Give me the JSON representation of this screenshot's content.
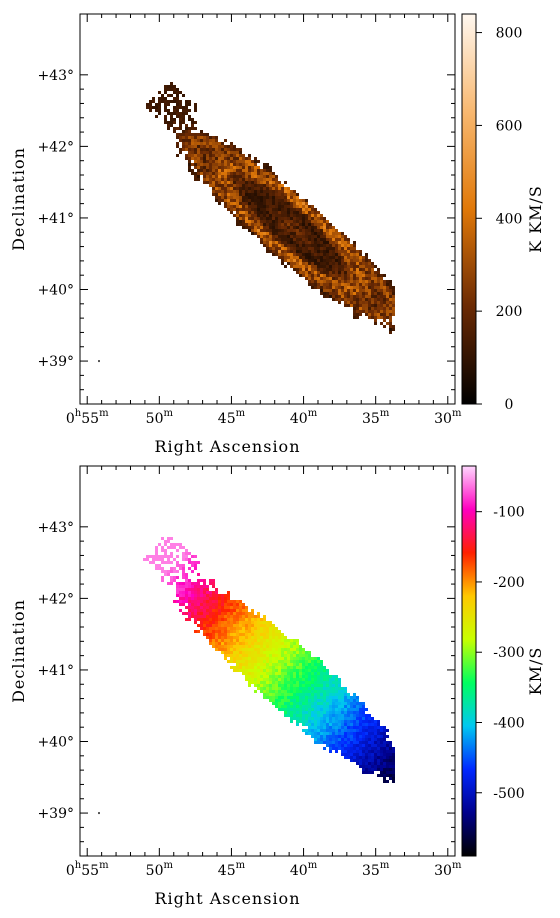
{
  "chart_data": [
    {
      "type": "heatmap",
      "title": "",
      "xlabel": "Right Ascension",
      "ylabel": "Declination",
      "x_ticks": [
        {
          "value": 55,
          "main": "0",
          "sup_h": "h",
          "num": "55",
          "sup_m": "m"
        },
        {
          "value": 50,
          "main": "",
          "sup_h": "",
          "num": "50",
          "sup_m": "m"
        },
        {
          "value": 45,
          "main": "",
          "sup_h": "",
          "num": "45",
          "sup_m": "m"
        },
        {
          "value": 40,
          "main": "",
          "sup_h": "",
          "num": "40",
          "sup_m": "m"
        },
        {
          "value": 35,
          "main": "",
          "sup_h": "",
          "num": "35",
          "sup_m": "m"
        },
        {
          "value": 30,
          "main": "",
          "sup_h": "",
          "num": "30",
          "sup_m": "m"
        }
      ],
      "xlim": [
        55.5,
        29.5
      ],
      "y_ticks": [
        {
          "value": 43,
          "label": "+43°"
        },
        {
          "value": 42,
          "label": "+42°"
        },
        {
          "value": 41,
          "label": "+41°"
        },
        {
          "value": 40,
          "label": "+40°"
        },
        {
          "value": 39,
          "label": "+39°"
        }
      ],
      "ylim": [
        38.4,
        43.85
      ],
      "colorbar": {
        "label": "K KM/S",
        "range": [
          0,
          840
        ],
        "ticks": [
          0,
          200,
          400,
          600,
          800
        ],
        "colormap": "heat",
        "colors": [
          "#000000",
          "#6b2a04",
          "#e07808",
          "#f8b870",
          "#fff8f0"
        ]
      },
      "map": "integrated intensity",
      "ring_center": [
        41.8,
        41.27
      ]
    },
    {
      "type": "heatmap",
      "title": "",
      "xlabel": "Right Ascension",
      "ylabel": "Declination",
      "x_ticks": [
        {
          "value": 55,
          "main": "0",
          "sup_h": "h",
          "num": "55",
          "sup_m": "m"
        },
        {
          "value": 50,
          "main": "",
          "sup_h": "",
          "num": "50",
          "sup_m": "m"
        },
        {
          "value": 45,
          "main": "",
          "sup_h": "",
          "num": "45",
          "sup_m": "m"
        },
        {
          "value": 40,
          "main": "",
          "sup_h": "",
          "num": "40",
          "sup_m": "m"
        },
        {
          "value": 35,
          "main": "",
          "sup_h": "",
          "num": "35",
          "sup_m": "m"
        },
        {
          "value": 30,
          "main": "",
          "sup_h": "",
          "num": "30",
          "sup_m": "m"
        }
      ],
      "xlim": [
        55.5,
        29.5
      ],
      "y_ticks": [
        {
          "value": 43,
          "label": "+43°"
        },
        {
          "value": 42,
          "label": "+42°"
        },
        {
          "value": 41,
          "label": "+41°"
        },
        {
          "value": 40,
          "label": "+40°"
        },
        {
          "value": 39,
          "label": "+39°"
        }
      ],
      "ylim": [
        38.4,
        43.85
      ],
      "colorbar": {
        "label": "KM/S",
        "range": [
          -590,
          -35
        ],
        "ticks": [
          -100,
          -200,
          -300,
          -400,
          -500
        ],
        "colormap": "rainbow",
        "colors": [
          "#000000",
          "#00008c",
          "#0028ff",
          "#00c8f0",
          "#00ff60",
          "#c8ff00",
          "#ffc800",
          "#ff2000",
          "#ff00c0",
          "#ffd8ff"
        ]
      },
      "map": "velocity field",
      "velocity_range": [
        -590,
        -60
      ]
    }
  ]
}
